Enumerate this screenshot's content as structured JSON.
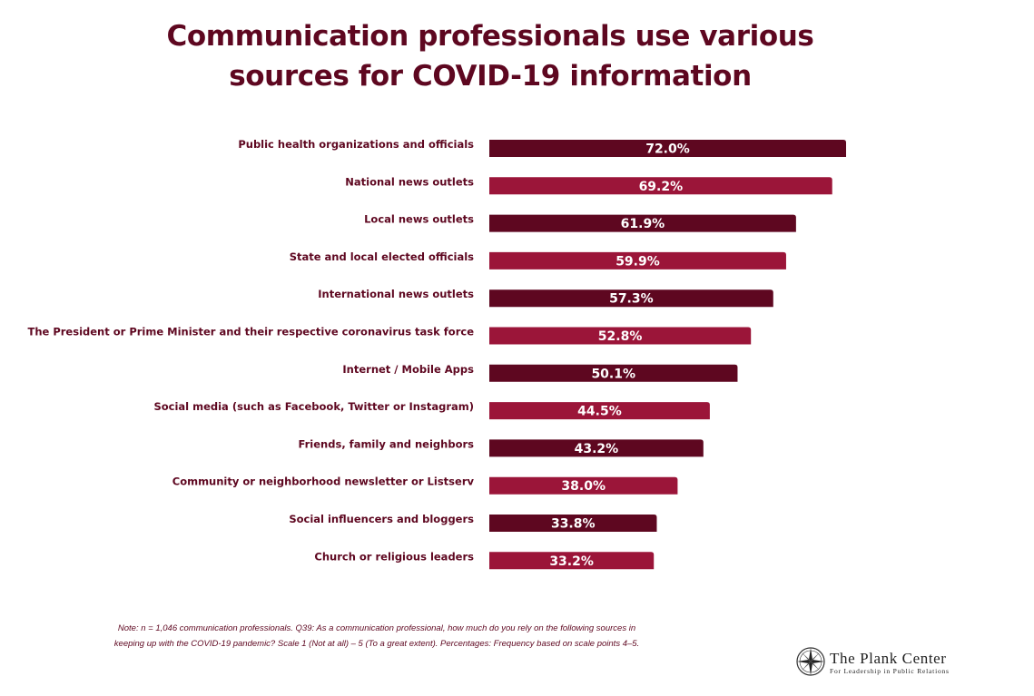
{
  "title_lines": [
    "Communication professionals use various",
    "sources for COVID-19 information"
  ],
  "colors": {
    "title": "#5e0720",
    "bar_dark": "#5e0720",
    "bar_light": "#9b1539",
    "value_text": "#ffffff"
  },
  "chart_data": {
    "type": "bar",
    "orientation": "horizontal",
    "categories": [
      "Public health organizations and officials",
      "National news outlets",
      "Local news outlets",
      "State and local elected officials",
      "International news outlets",
      "The President or Prime Minister and their respective coronavirus task force",
      "Internet / Mobile Apps",
      "Social media (such as Facebook, Twitter or Instagram)",
      "Friends, family and neighbors",
      "Community or neighborhood newsletter or Listserv",
      "Social influencers and bloggers",
      "Church or religious leaders"
    ],
    "values": [
      72.0,
      69.2,
      61.9,
      59.9,
      57.3,
      52.8,
      50.1,
      44.5,
      43.2,
      38.0,
      33.8,
      33.2
    ],
    "value_labels": [
      "72.0%",
      "69.2%",
      "61.9%",
      "59.9%",
      "57.3%",
      "52.8%",
      "50.1%",
      "44.5%",
      "43.2%",
      "38.0%",
      "33.8%",
      "33.2%"
    ],
    "title": "Communication professionals use various sources for COVID-19 information",
    "xlabel": "",
    "ylabel": "",
    "xlim": [
      0,
      72.0
    ],
    "grid": false,
    "legend": "none",
    "bar_colors": "alternating dark and light burgundy"
  },
  "note_lines": [
    "Note: n = 1,046 communication professionals. Q39: As a communication professional, how much do you rely on the following sources in",
    "keeping up with the COVID-19 pandemic? Scale 1 (Not at all) – 5 (To a great extent). Percentages: Frequency based on scale points 4–5."
  ],
  "logo": {
    "name": "The Plank Center",
    "tagline": "For Leadership in Public Relations",
    "icon": "compass-rose-icon"
  }
}
